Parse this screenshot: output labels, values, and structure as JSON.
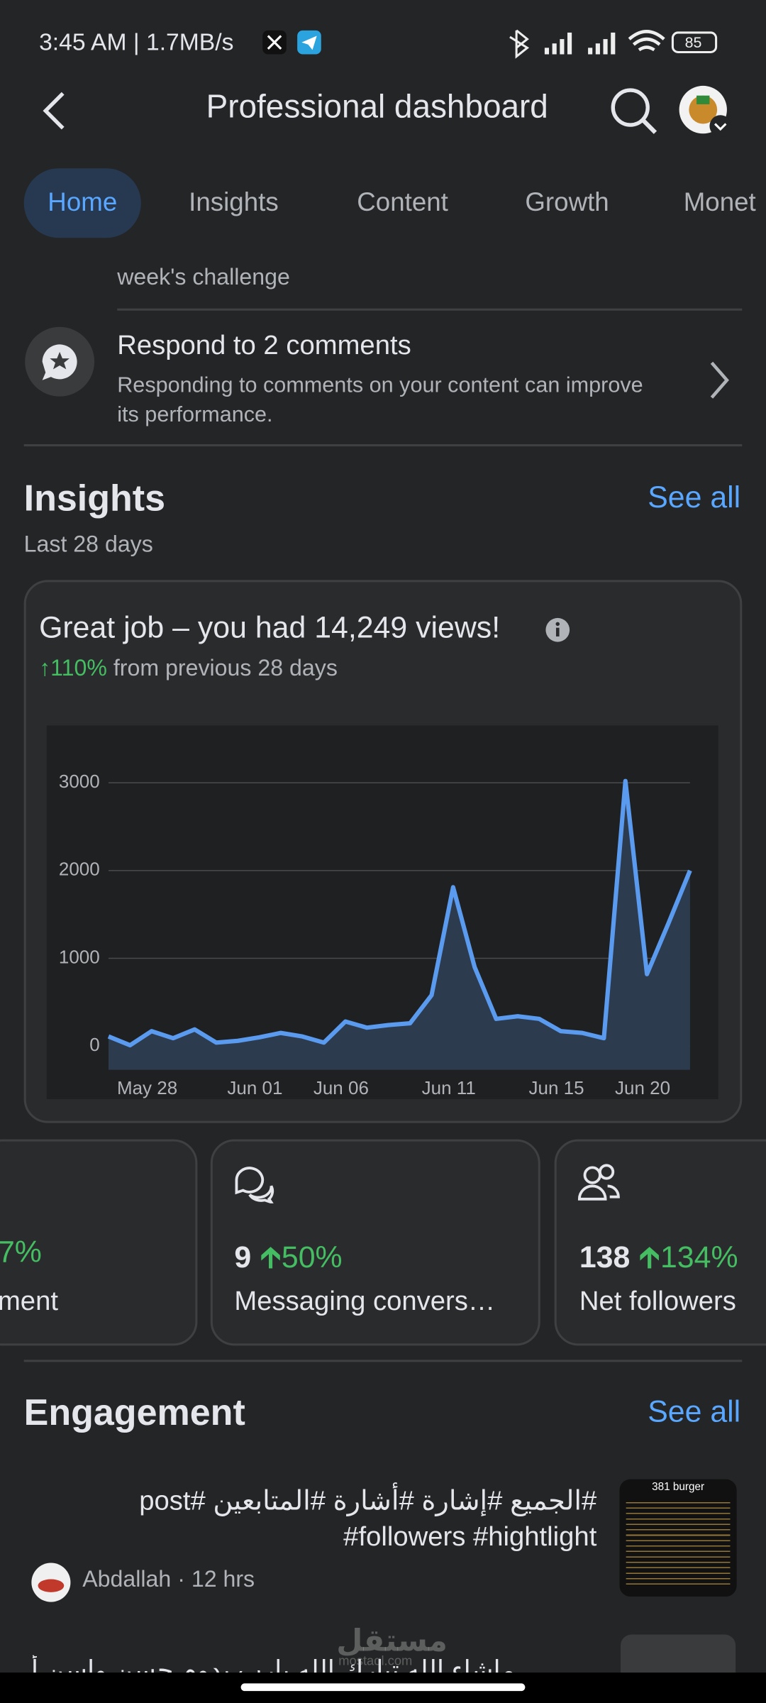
{
  "status_bar": {
    "time": "3:45 AM | 1.7MB/s",
    "battery": "85"
  },
  "header": {
    "title": "Professional dashboard"
  },
  "tabs": [
    "Home",
    "Insights",
    "Content",
    "Growth",
    "Monet"
  ],
  "tasks": {
    "previous": "week's challenge",
    "title": "Respond to 2 comments",
    "description": "Responding to comments on your content can improve its performance."
  },
  "insights": {
    "title": "Insights",
    "see_all": "See all",
    "period": "Last 28 days",
    "headline": "Great job – you had 14,249 views!",
    "change": "↑110%",
    "change_note": "from previous 28 days"
  },
  "chart_data": {
    "type": "area",
    "color": "#5a9bf0",
    "fill": "#2d3b4f",
    "grid": true,
    "categories": [
      null,
      null,
      "May 28",
      null,
      null,
      null,
      null,
      "Jun 01",
      null,
      null,
      null,
      "Jun 06",
      null,
      null,
      null,
      null,
      "Jun 11",
      null,
      null,
      null,
      null,
      "Jun 15",
      null,
      null,
      null,
      "Jun 20",
      null,
      null
    ],
    "values": [
      110,
      10,
      170,
      90,
      190,
      40,
      60,
      100,
      150,
      110,
      40,
      280,
      210,
      240,
      260,
      580,
      1810,
      900,
      310,
      340,
      310,
      170,
      150,
      90,
      3020,
      820,
      1400,
      2000
    ],
    "ylim": [
      -270,
      3380
    ],
    "yticks": [
      0,
      1000,
      2000,
      3000
    ]
  },
  "metric_cards": [
    {
      "change": "7%",
      "label": "ment"
    },
    {
      "value": "9",
      "change": "50%",
      "label": "Messaging convers…"
    },
    {
      "value": "138",
      "change": "134%",
      "label": "Net followers"
    }
  ],
  "engagement": {
    "title": "Engagement",
    "see_all": "See all",
    "posts": [
      {
        "text": "#الجميع #إشارة #أشارة #المتابعين #post #followers #hightlight",
        "author": "Abdallah · 12 hrs",
        "thumb": "381 burger"
      },
      {
        "text": "ماشاء الله تبارك الله يارب يدوم حسن واسن أيديكم"
      }
    ]
  },
  "watermark": {
    "name": "مستقل",
    "site": "mostaql.com"
  }
}
